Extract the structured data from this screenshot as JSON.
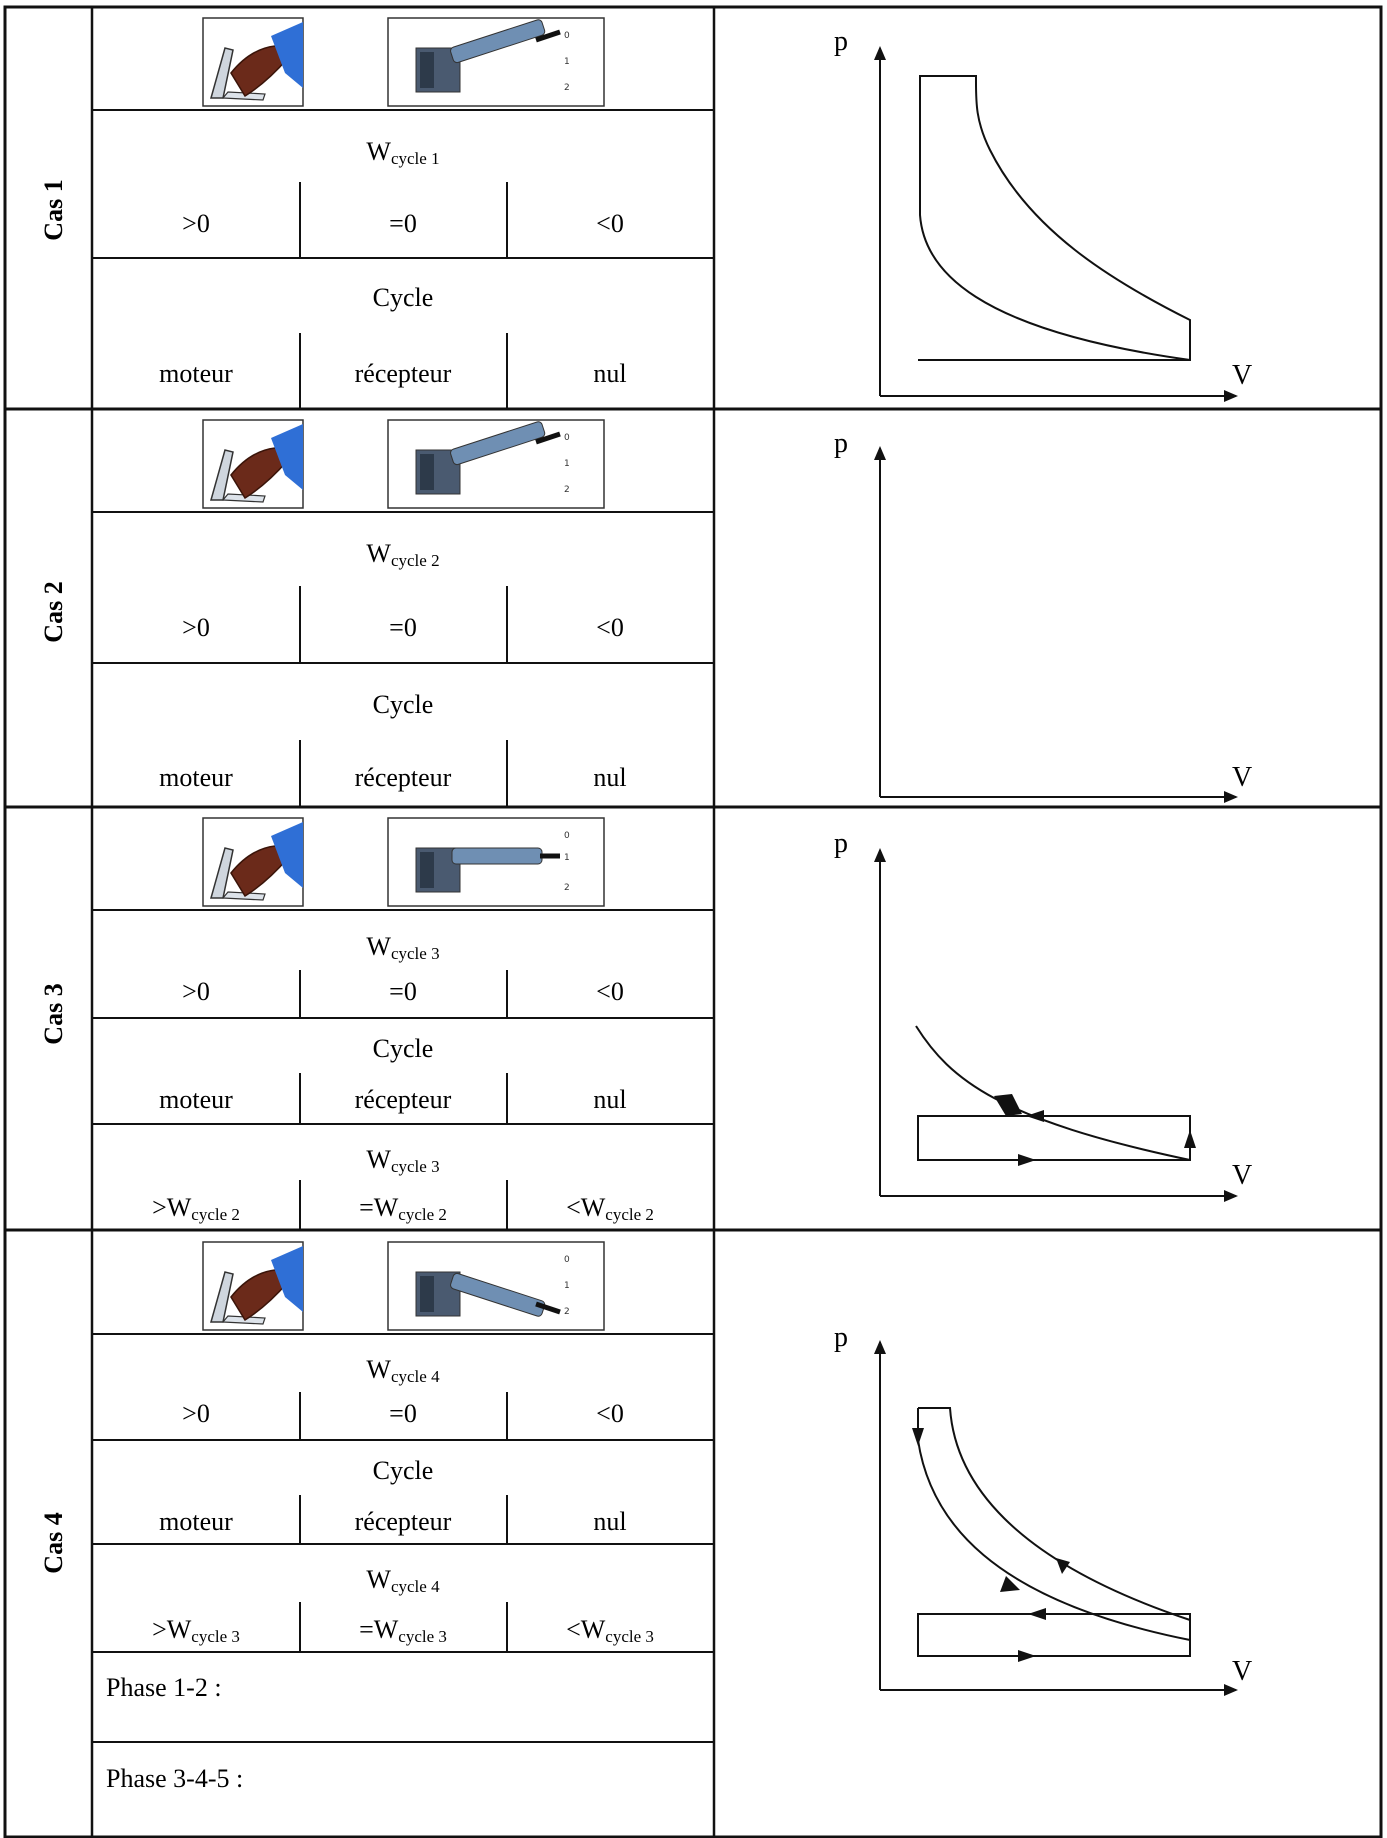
{
  "cases": [
    {
      "label": "Cas 1",
      "gear": "0",
      "work_title": "W",
      "work_sub": "cycle 1",
      "work_options": [
        ">0",
        "=0",
        "<0"
      ],
      "cycle_title": "Cycle",
      "cycle_options": [
        "moteur",
        "récepteur",
        "nul"
      ]
    },
    {
      "label": "Cas 2",
      "gear": "0",
      "work_title": "W",
      "work_sub": "cycle 2",
      "work_options": [
        ">0",
        "=0",
        "<0"
      ],
      "cycle_title": "Cycle",
      "cycle_options": [
        "moteur",
        "récepteur",
        "nul"
      ]
    },
    {
      "label": "Cas 3",
      "gear": "1",
      "work_title": "W",
      "work_sub": "cycle 3",
      "work_options": [
        ">0",
        "=0",
        "<0"
      ],
      "cycle_title": "Cycle",
      "cycle_options": [
        "moteur",
        "récepteur",
        "nul"
      ],
      "compare_title": "W",
      "compare_title_sub": "cycle 3",
      "compare_options": [
        {
          "prefix": ">W",
          "sub": "cycle 2"
        },
        {
          "prefix": "=W",
          "sub": "cycle 2"
        },
        {
          "prefix": "<W",
          "sub": "cycle 2"
        }
      ]
    },
    {
      "label": "Cas 4",
      "gear": "2",
      "work_title": "W",
      "work_sub": "cycle 4",
      "work_options": [
        ">0",
        "=0",
        "<0"
      ],
      "cycle_title": "Cycle",
      "cycle_options": [
        "moteur",
        "récepteur",
        "nul"
      ],
      "compare_title": "W",
      "compare_title_sub": "cycle 4",
      "compare_options": [
        {
          "prefix": ">W",
          "sub": "cycle 3"
        },
        {
          "prefix": "=W",
          "sub": "cycle 3"
        },
        {
          "prefix": "<W",
          "sub": "cycle 3"
        }
      ],
      "phases": [
        "Phase 1-2 :",
        "Phase 3-4-5 :"
      ]
    }
  ],
  "gear_labels": [
    "0",
    "1",
    "2"
  ],
  "axes": {
    "y": "p",
    "x": "V"
  },
  "colors": {
    "line": "#111111",
    "pedal_blue": "#2f6fd6",
    "shoe": "#6b2a1a",
    "lever": "#6f8fb3",
    "lever_dark": "#4a5a70"
  }
}
